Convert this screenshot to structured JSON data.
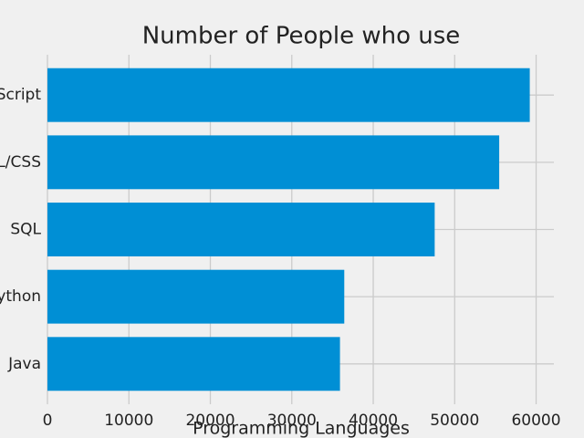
{
  "chart_data": {
    "type": "barh",
    "title": "Number of People who use",
    "xlabel": "Programming Languages",
    "categories": [
      "Java",
      "Python",
      "SQL",
      "HTML/CSS",
      "JavaScript"
    ],
    "values": [
      35917,
      36443,
      47544,
      55466,
      59219
    ],
    "color": "#008fd5",
    "xlim": [
      0,
      62180
    ],
    "xticks": [
      0,
      10000,
      20000,
      30000,
      40000,
      50000,
      60000
    ],
    "grid": true
  }
}
